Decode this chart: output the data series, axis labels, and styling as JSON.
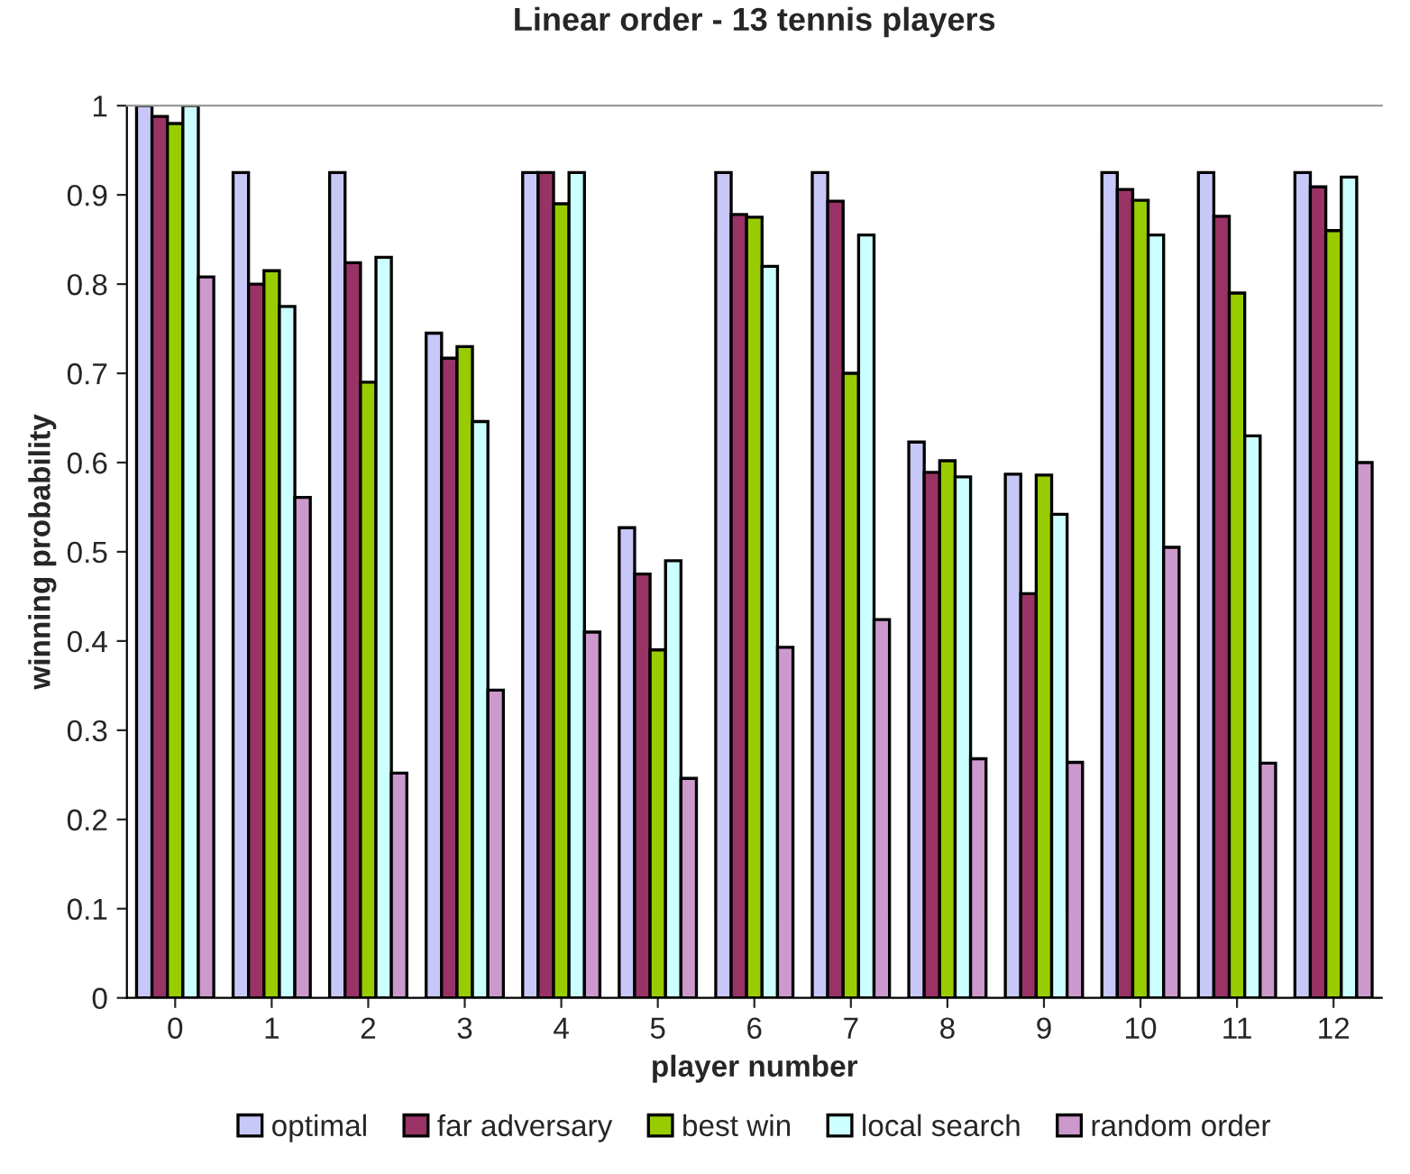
{
  "chart_data": {
    "type": "bar",
    "title": "Linear order - 13 tennis players",
    "xlabel": "player number",
    "ylabel": "winning probability",
    "categories": [
      "0",
      "1",
      "2",
      "3",
      "4",
      "5",
      "6",
      "7",
      "8",
      "9",
      "10",
      "11",
      "12"
    ],
    "series": [
      {
        "name": "optimal",
        "color": "#c8c8f8",
        "values": [
          1.0,
          0.925,
          0.925,
          0.745,
          0.925,
          0.527,
          0.925,
          0.925,
          0.623,
          0.587,
          0.925,
          0.925,
          0.925
        ]
      },
      {
        "name": "far adversary",
        "color": "#993366",
        "values": [
          0.988,
          0.8,
          0.824,
          0.717,
          0.925,
          0.475,
          0.878,
          0.893,
          0.589,
          0.453,
          0.906,
          0.876,
          0.909
        ]
      },
      {
        "name": "best win",
        "color": "#99cc00",
        "values": [
          0.98,
          0.815,
          0.69,
          0.73,
          0.89,
          0.39,
          0.875,
          0.7,
          0.602,
          0.586,
          0.894,
          0.79,
          0.86
        ]
      },
      {
        "name": "local search",
        "color": "#ccffff",
        "values": [
          1.0,
          0.775,
          0.83,
          0.646,
          0.925,
          0.49,
          0.82,
          0.855,
          0.584,
          0.542,
          0.855,
          0.63,
          0.92
        ]
      },
      {
        "name": "random order",
        "color": "#cc99cc",
        "values": [
          0.808,
          0.561,
          0.252,
          0.345,
          0.41,
          0.246,
          0.393,
          0.424,
          0.268,
          0.264,
          0.505,
          0.263,
          0.6
        ]
      }
    ],
    "ylim": [
      0,
      1
    ],
    "yticks": [
      0,
      0.1,
      0.2,
      0.3,
      0.4,
      0.5,
      0.6,
      0.7,
      0.8,
      0.9,
      1
    ],
    "grid": false,
    "legend": "bottom"
  }
}
